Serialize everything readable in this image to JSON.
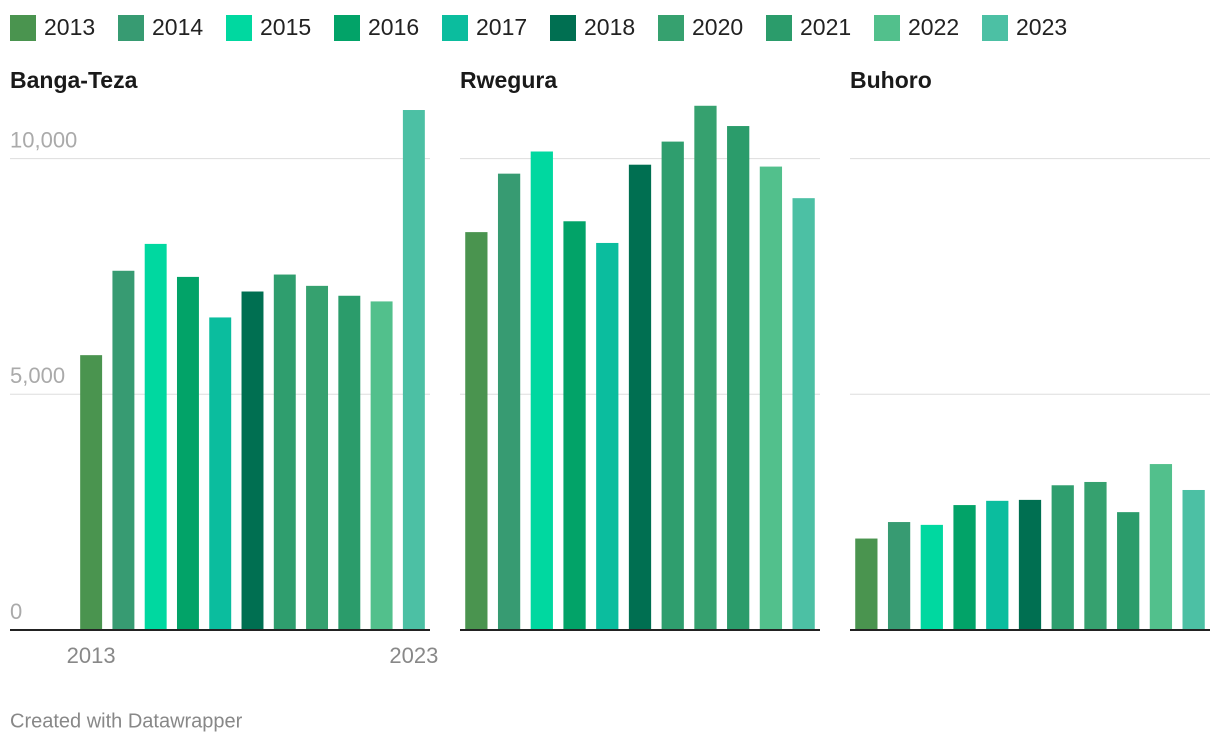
{
  "legend": [
    {
      "name": "2013",
      "color": "#4a944f"
    },
    {
      "name": "2014",
      "color": "#379b72"
    },
    {
      "name": "2015",
      "color": "#00d8a0"
    },
    {
      "name": "2016",
      "color": "#02a368"
    },
    {
      "name": "2017",
      "color": "#0bbd9e"
    },
    {
      "name": "2018",
      "color": "#006f51"
    },
    {
      "name": "2020",
      "color": "#36a16f"
    },
    {
      "name": "2021",
      "color": "#2b9c6b"
    },
    {
      "name": "2022",
      "color": "#52c08c"
    },
    {
      "name": "2023",
      "color": "#4cc0a4"
    }
  ],
  "footer": "Created with Datawrapper",
  "chart_data": [
    {
      "type": "bar",
      "title": "Banga-Teza",
      "categories": [
        "2013",
        null,
        null,
        null,
        null,
        null,
        null,
        null,
        null,
        null,
        "2023"
      ],
      "values": [
        5830,
        7620,
        8190,
        7490,
        6630,
        7180,
        7540,
        7300,
        7090,
        6970,
        11030
      ],
      "colors": [
        "#4a944f",
        "#379b72",
        "#00d8a0",
        "#02a368",
        "#0bbd9e",
        "#006f51",
        "#2f9e6e",
        "#36a16f",
        "#2b9c6b",
        "#52c08c",
        "#4cc0a4"
      ],
      "ylim": [
        0,
        11200
      ],
      "yticks": [
        0,
        {
          "value": 5000,
          "label": "5,000"
        },
        {
          "value": 10000,
          "label": "10,000"
        }
      ],
      "tick_labels": true,
      "grid": true
    },
    {
      "type": "bar",
      "title": "Rwegura",
      "values": [
        8440,
        9680,
        10150,
        8670,
        8210,
        9870,
        10360,
        11120,
        10690,
        9830,
        9160
      ],
      "colors": [
        "#4a944f",
        "#379b72",
        "#00d8a0",
        "#02a368",
        "#0bbd9e",
        "#006f51",
        "#2f9e6e",
        "#36a16f",
        "#2b9c6b",
        "#52c08c",
        "#4cc0a4"
      ],
      "ylim": [
        0,
        11200
      ],
      "yticks": [
        0,
        5000,
        10000
      ],
      "tick_labels": false,
      "grid": true
    },
    {
      "type": "bar",
      "title": "Buhoro",
      "values": [
        1940,
        2290,
        2230,
        2650,
        2740,
        2760,
        3070,
        3140,
        2500,
        3520,
        2970
      ],
      "colors": [
        "#4a944f",
        "#379b72",
        "#00d8a0",
        "#02a368",
        "#0bbd9e",
        "#006f51",
        "#2f9e6e",
        "#36a16f",
        "#2b9c6b",
        "#52c08c",
        "#4cc0a4"
      ],
      "ylim": [
        0,
        11200
      ],
      "yticks": [
        0,
        5000,
        10000
      ],
      "tick_labels": false,
      "grid": true
    }
  ]
}
